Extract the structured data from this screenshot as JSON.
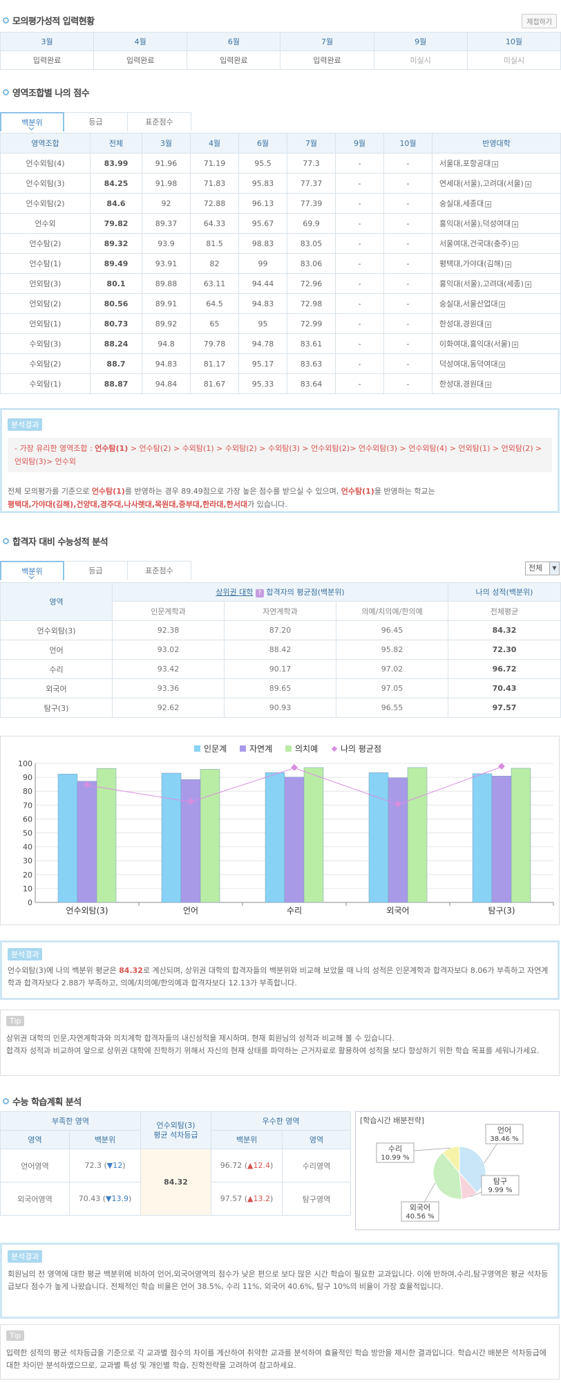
{
  "sec1": {
    "title": "모의평가성적 입력현황",
    "collapse_btn": "제접하기",
    "months": [
      "3월",
      "4월",
      "6월",
      "7월",
      "9월",
      "10월"
    ],
    "status": [
      "입력완료",
      "입력완료",
      "입력완료",
      "입력완료",
      "미실시",
      "미실시"
    ]
  },
  "sec2": {
    "title": "영역조합별 나의 점수",
    "tabs": [
      "백분위",
      "등급",
      "표준점수"
    ],
    "headers": [
      "영역조합",
      "전체",
      "3월",
      "4월",
      "6월",
      "7월",
      "9월",
      "10월",
      "반영대학"
    ],
    "rows": [
      [
        "언수외탐(4)",
        "83.99",
        "91.96",
        "71.19",
        "95.5",
        "77.3",
        "-",
        "-",
        "서울대,포항공대"
      ],
      [
        "언수외탐(3)",
        "84.25",
        "91.98",
        "71.83",
        "95.83",
        "77.37",
        "-",
        "-",
        "연세대(서울),고려대(서울)"
      ],
      [
        "언수외탐(2)",
        "84.6",
        "92",
        "72.88",
        "96.13",
        "77.39",
        "-",
        "-",
        "숭실대,세종대"
      ],
      [
        "언수외",
        "79.82",
        "89.37",
        "64.33",
        "95.67",
        "69.9",
        "-",
        "-",
        "홍익대(서울),덕성여대"
      ],
      [
        "언수탐(2)",
        "89.32",
        "93.9",
        "81.5",
        "98.83",
        "83.05",
        "-",
        "-",
        "서울여대,건국대(충주)"
      ],
      [
        "언수탐(1)",
        "89.49",
        "93.91",
        "82",
        "99",
        "83.06",
        "-",
        "-",
        "평택대,가야대(김해)"
      ],
      [
        "언외탐(3)",
        "80.1",
        "89.88",
        "63.11",
        "94.44",
        "72.96",
        "-",
        "-",
        "홍익대(서울),고려대(세종)"
      ],
      [
        "언외탐(2)",
        "80.56",
        "89.91",
        "64.5",
        "94.83",
        "72.98",
        "-",
        "-",
        "숭실대,서울산업대"
      ],
      [
        "언외탐(1)",
        "80.73",
        "89.92",
        "65",
        "95",
        "72.99",
        "-",
        "-",
        "한성대,경원대"
      ],
      [
        "수외탐(3)",
        "88.24",
        "94.8",
        "79.78",
        "94.78",
        "83.61",
        "-",
        "-",
        "이화여대,홍익대(서울)"
      ],
      [
        "수외탐(2)",
        "88.7",
        "94.83",
        "81.17",
        "95.17",
        "83.63",
        "-",
        "-",
        "덕성여대,동덕여대"
      ],
      [
        "수외탐(1)",
        "88.87",
        "94.84",
        "81.67",
        "95.33",
        "83.64",
        "-",
        "-",
        "한성대,경원대"
      ]
    ]
  },
  "result1": {
    "badge": "분석결과",
    "best_prefix": "- 가장 유리한 영역조합 : ",
    "best_first": "언수탐(1)",
    "best_rest": " > 언수탐(2) > 수외탐(1) > 수외탐(2) > 수외탐(3) > 언수외탐(2)> 언수외탐(3) > 언수외탐(4) > 언외탐(1) > 언외탐(2) > 언외탐(3)> 언수외",
    "p1": "전체 모의평가를 기준으로 ",
    "p1_hl": "언수탐(1)",
    "p2": "를 반영하는 경우 89.49점으로 가장 높은 점수를 받으실 수 있으며, ",
    "p2_hl": "언수탐(1)",
    "p3": "을 반영하는 학교는",
    "schools": "평택대,가야대(김해),건양대,경주대,나사렛대,목원대,중부대,한라대,한서대",
    "p4": "가 있습니다."
  },
  "sec3": {
    "title": "합격자 대비 수능성적 분석",
    "tabs": [
      "백분위",
      "등급",
      "표준점수"
    ],
    "select": "전체",
    "h_area": "영역",
    "h_group_a": "상위권 대학",
    "h_group_b": "합격자의 평균점(백분위)",
    "h_mine": "나의 성적(백분위)",
    "sub": [
      "인문계학과",
      "자연계학과",
      "의예/치의예/한의예",
      "전체평균"
    ],
    "rows": [
      [
        "언수외탐(3)",
        "92.38",
        "87.20",
        "96.45",
        "84.32"
      ],
      [
        "언어",
        "93.02",
        "88.42",
        "95.82",
        "72.30"
      ],
      [
        "수리",
        "93.42",
        "90.17",
        "97.02",
        "96.72"
      ],
      [
        "외국어",
        "93.36",
        "89.65",
        "97.05",
        "70.43"
      ],
      [
        "탐구(3)",
        "92.62",
        "90.93",
        "96.55",
        "97.57"
      ]
    ]
  },
  "chart_data": {
    "type": "bar",
    "categories": [
      "언수외탐(3)",
      "언어",
      "수리",
      "외국어",
      "탐구(3)"
    ],
    "series": [
      {
        "name": "인문계",
        "values": [
          92.38,
          93.02,
          93.42,
          93.36,
          92.62
        ],
        "color": "#87d2f5"
      },
      {
        "name": "자연계",
        "values": [
          87.2,
          88.42,
          90.17,
          89.65,
          90.93
        ],
        "color": "#a99ae8"
      },
      {
        "name": "의치예",
        "values": [
          96.45,
          95.82,
          97.02,
          97.05,
          96.55
        ],
        "color": "#b9eca5"
      },
      {
        "name": "나의 평균점",
        "values": [
          84.32,
          72.3,
          96.72,
          70.43,
          97.57
        ],
        "color": "#d88ee0",
        "kind": "line"
      }
    ],
    "ylim": [
      0,
      100
    ],
    "yticks": [
      "0",
      "10",
      "20",
      "30",
      "40",
      "50",
      "60",
      "70",
      "80",
      "90",
      "100"
    ],
    "legend": "top-right"
  },
  "result2": {
    "badge": "분석결과",
    "p1": "언수외탐(3)에 나의 백분위 평균은 ",
    "hl": "84.32",
    "p2": "로 계산되며, 상위권 대학의 합격자들의 백분위와 비교해 보았을 때 나의 성적은 인문계학과 합격자보다 8.06가 부족하고 자연계학과 합격자보다 2.88가 부족하고, 의예/치의예/한의예과 합격자보다 12.13가 부족합니다."
  },
  "tip1": {
    "badge": "Tip",
    "l1": "상위권 대학의 인문,자연계학과와 의치계학 합격자들의 내신성적을 제시하며, 현재 회원님의 성적과 비교해 볼 수 있습니다.",
    "l2": "합격자 성적과 비교하여 앞으로 상위권 대학에 진학하기 위해서 자신의 현재 상태를 파악하는 근거자료로 활용하여 성적을 보다 향상하기 위한 학습 목표를 세워나가세요."
  },
  "sec4": {
    "title": "수능 학습계획 분석",
    "h_weak": "부족한 영역",
    "h_mid1": "언수외탐(3)",
    "h_mid2": "평균 석차등급",
    "h_strong": "우수한 영역",
    "sub_area": "영역",
    "sub_pct": "백분위",
    "mid_value": "84.32",
    "weak": [
      {
        "area": "언어영역",
        "pct": "72.3",
        "delta": "▼12"
      },
      {
        "area": "외국어영역",
        "pct": "70.43",
        "delta": "▼13.9"
      }
    ],
    "strong": [
      {
        "pct": "96.72",
        "delta": "▲12.4",
        "area": "수리영역"
      },
      {
        "pct": "97.57",
        "delta": "▲13.2",
        "area": "탐구영역"
      }
    ],
    "pie_title": "[학습시간 배분전략]",
    "pie": [
      {
        "name": "언어",
        "pct": "38.46 %",
        "value": 38.46,
        "color": "#c8e6f8"
      },
      {
        "name": "탐구",
        "pct": "9.99 %",
        "value": 9.99,
        "color": "#f7d4dc"
      },
      {
        "name": "외국어",
        "pct": "40.56 %",
        "value": 40.56,
        "color": "#c9efc0"
      },
      {
        "name": "수리",
        "pct": "10.99 %",
        "value": 10.99,
        "color": "#f6f3a8"
      }
    ]
  },
  "result3": {
    "badge": "분석결과",
    "text": "회원님의 전 영역에 대한 평균 백분위에 비하여 언어,외국어영역의 점수가 낮은 편으로 보다 많은 시간 학습이 필요한 교과입니다. 이에 반하여,수리,탐구영역은 평균 석차등급보다 점수가 높게 나왔습니다. 전체적인 학습 비율은 언어 38.5%, 수리 11%, 외국어 40.6%, 탐구 10%의 비율이 가장 효율적입니다."
  },
  "tip2": {
    "badge": "Tip",
    "text": "입력한 성적의 평균 석차등급을 기준으로 각 교과별 점수의 차이를 계산하여 취약한 교과를 분석하여 효율적인 학습 방안을 제시한 결과입니다. 학습시간 배분은 석차등급에 대한 차이만 분석하였으므로, 교과별 특성 및 개인별 학습, 진학전략을 고려하여 참고하세요."
  }
}
